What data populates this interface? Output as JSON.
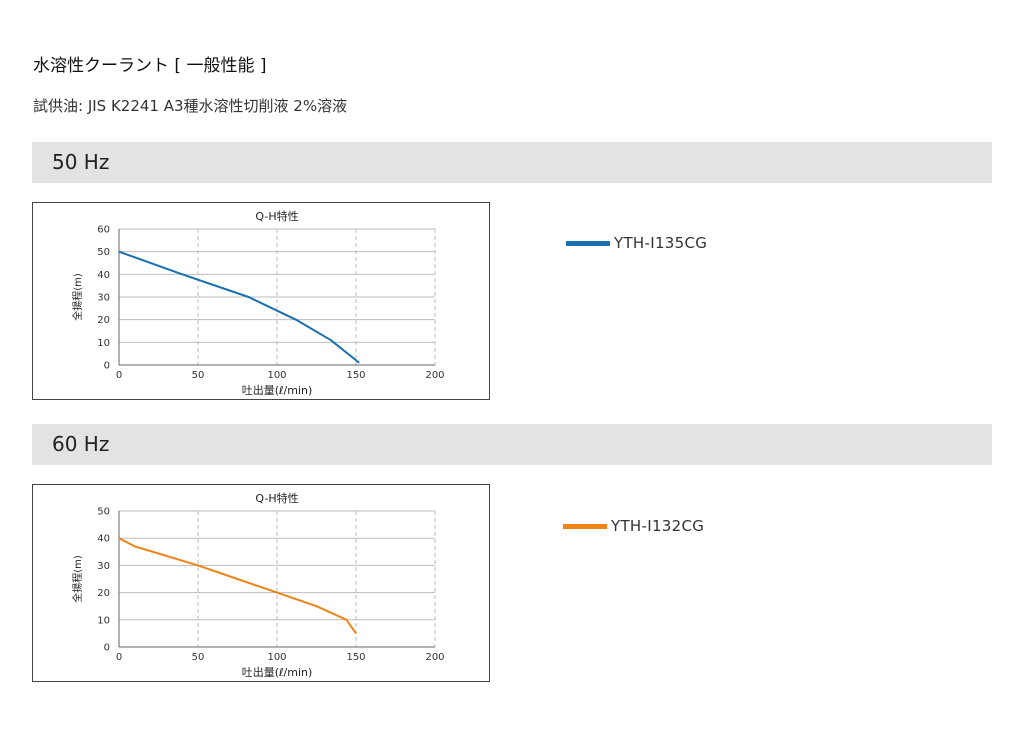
{
  "page": {
    "title": "水溶性クーラント [ 一般性能 ]",
    "subtitle": "試供油: JIS K2241 A3種水溶性切削液 2%溶液"
  },
  "sections": [
    {
      "label": "50 Hz",
      "legend_label": "YTH-I135CG",
      "color": "#1a6fae"
    },
    {
      "label": "60 Hz",
      "legend_label": "YTH-I132CG",
      "color": "#ee8418"
    }
  ],
  "chart_data": [
    {
      "type": "line",
      "title": "Q-H特性",
      "xlabel": "吐出量(ℓ/min)",
      "ylabel": "全揚程(m)",
      "xlim": [
        0,
        200
      ],
      "ylim": [
        0,
        60
      ],
      "xticks": [
        0,
        50,
        100,
        150,
        200
      ],
      "yticks": [
        0,
        10,
        20,
        30,
        40,
        50,
        60
      ],
      "grid": true,
      "series": [
        {
          "name": "YTH-I135CG",
          "color": "#1a6fae",
          "x": [
            0,
            40,
            82,
            112,
            134,
            152
          ],
          "y": [
            50,
            40,
            30,
            20,
            11,
            1
          ]
        }
      ]
    },
    {
      "type": "line",
      "title": "Q-H特性",
      "xlabel": "吐出量(ℓ/min)",
      "ylabel": "全揚程(m)",
      "xlim": [
        0,
        200
      ],
      "ylim": [
        0,
        50
      ],
      "xticks": [
        0,
        50,
        100,
        150,
        200
      ],
      "yticks": [
        0,
        10,
        20,
        30,
        40,
        50
      ],
      "grid": true,
      "series": [
        {
          "name": "YTH-I132CG",
          "color": "#ee8418",
          "x": [
            0,
            10,
            50,
            75,
            100,
            125,
            144,
            150
          ],
          "y": [
            40,
            37,
            30,
            25,
            20,
            15,
            10,
            5
          ]
        }
      ]
    }
  ]
}
